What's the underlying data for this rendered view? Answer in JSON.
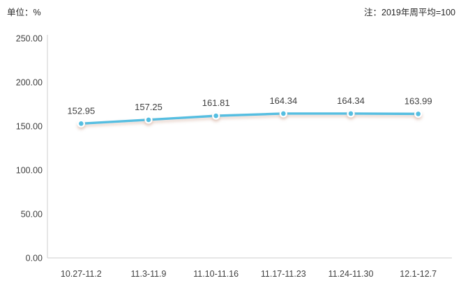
{
  "header": {
    "unit_label": "单位：%",
    "note_label": "注：2019年周平均=100"
  },
  "chart_data": {
    "type": "line",
    "title": "",
    "xlabel": "",
    "ylabel": "单位：%",
    "note": "注：2019年周平均=100",
    "categories": [
      "10.27-11.2",
      "11.3-11.9",
      "11.10-11.16",
      "11.17-11.23",
      "11.24-11.30",
      "12.1-12.7"
    ],
    "values": [
      152.95,
      157.25,
      161.81,
      164.34,
      164.34,
      163.99
    ],
    "data_labels": [
      "152.95",
      "157.25",
      "161.81",
      "164.34",
      "164.34",
      "163.99"
    ],
    "ylim": [
      0,
      250
    ],
    "y_ticks": [
      0,
      50,
      100,
      150,
      200,
      250
    ],
    "y_tick_labels": [
      "0.00",
      "50.00",
      "100.00",
      "150.00",
      "200.00",
      "250.00"
    ],
    "grid": false,
    "legend_position": "none",
    "colors": {
      "line": "#55BEE1",
      "marker_ring": "#FFFFFF",
      "marker_dot": "#55BEE1",
      "axis": "#D6D6D6",
      "tick_label": "#404040",
      "data_label": "#404040",
      "shadow": "#C08870"
    }
  }
}
